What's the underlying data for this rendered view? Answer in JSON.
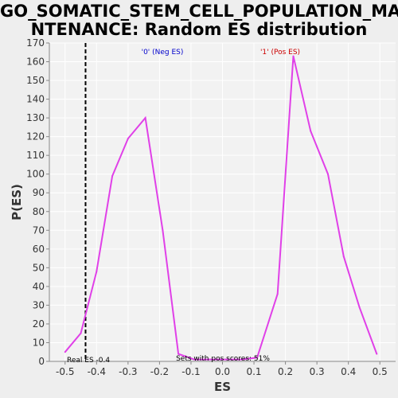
{
  "chart_data": {
    "type": "line",
    "title": [
      "GO_SOMATIC_STEM_CELL_POPULATION_MAI",
      "NTENANCE: Random ES distribution"
    ],
    "xlabel": "ES",
    "ylabel": "P(ES)",
    "xlim": [
      -0.55,
      0.55
    ],
    "ylim": [
      0,
      170
    ],
    "xticks": [
      "-0.5",
      "-0.4",
      "-0.3",
      "-0.2",
      "-0.1",
      "0.0",
      "0.1",
      "0.2",
      "0.3",
      "0.4",
      "0.5"
    ],
    "xtick_values": [
      -0.5,
      -0.4,
      -0.3,
      -0.2,
      -0.1,
      0.0,
      0.1,
      0.2,
      0.3,
      0.4,
      0.5
    ],
    "yticks": [
      0,
      10,
      20,
      30,
      40,
      50,
      60,
      70,
      80,
      90,
      100,
      110,
      120,
      130,
      140,
      150,
      160,
      170
    ],
    "series": [
      {
        "color": "#e040e8",
        "x": [
          -0.5,
          -0.45,
          -0.4,
          -0.35,
          -0.3,
          -0.245,
          -0.19,
          -0.14,
          -0.09,
          -0.04,
          0.01,
          0.06,
          0.11,
          0.175,
          0.225,
          0.28,
          0.335,
          0.385,
          0.435,
          0.49
        ],
        "y": [
          5,
          15,
          48,
          99,
          119,
          130,
          70,
          4,
          1,
          1,
          1,
          1,
          2,
          36,
          163,
          123,
          100,
          56,
          29,
          4
        ]
      }
    ],
    "real_es": -0.435,
    "annotations": {
      "neg_label": "'0' (Neg ES)",
      "pos_label": "'1' (Pos ES)",
      "real_es_label": "Real ES -0.4",
      "sets_label": "Sets with pos scores: 51%"
    },
    "colors": {
      "neg": "#0000cc",
      "pos": "#cc0000",
      "line": "#e040e8",
      "grid": "#ffffff",
      "plot_bg": "#f2f2f2"
    }
  }
}
